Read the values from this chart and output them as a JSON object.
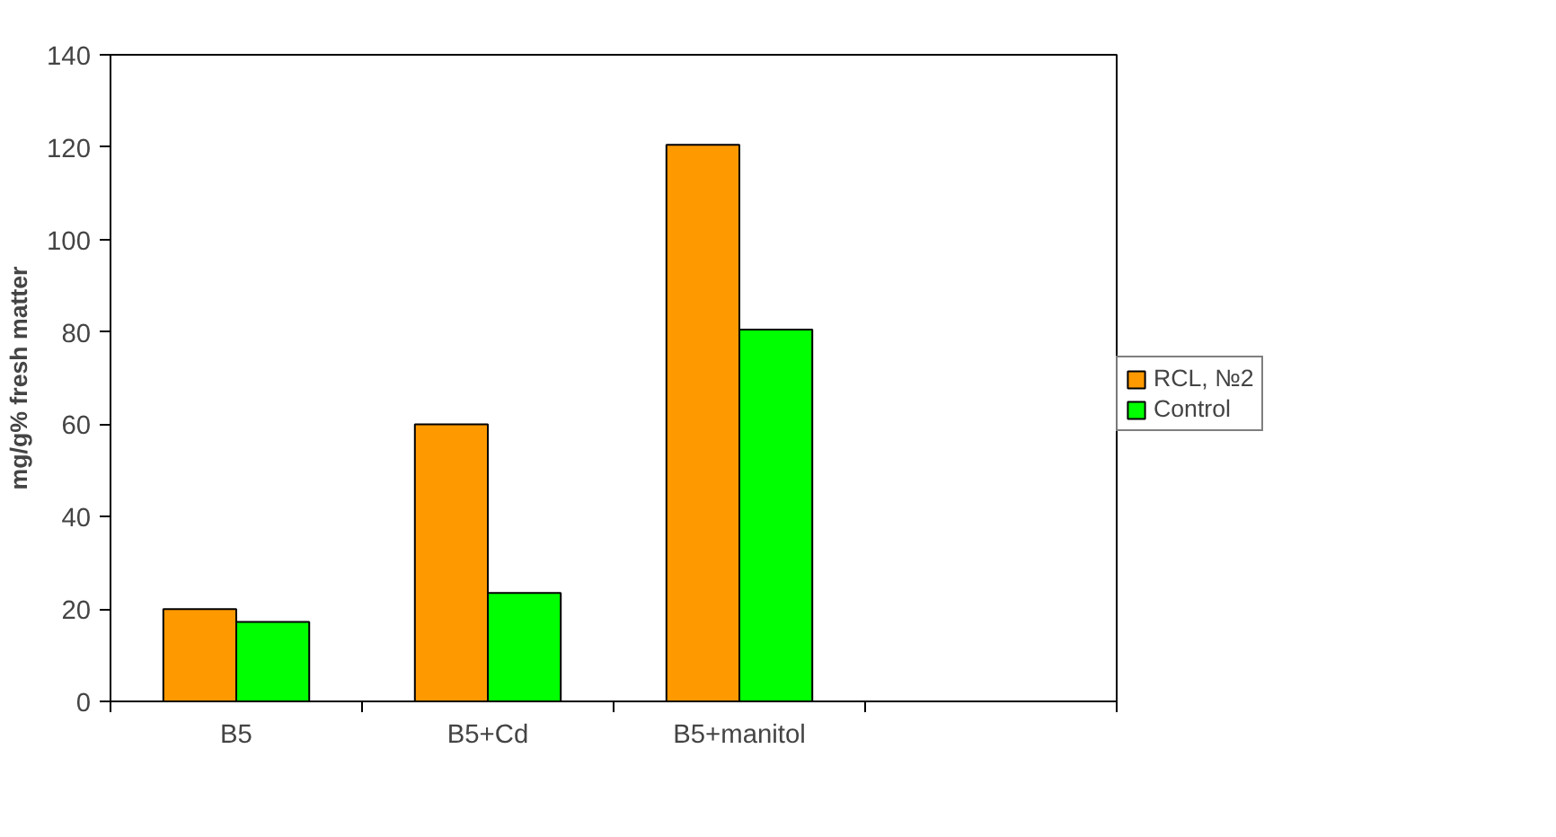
{
  "chart_data": {
    "type": "bar",
    "ylabel": "mg/g% fresh matter",
    "categories": [
      "B5",
      "B5+Cd",
      "B5+manitol",
      null
    ],
    "series": [
      {
        "name": "RCL, №2",
        "color": "#ff9900",
        "values": [
          20,
          60,
          120.5,
          null
        ]
      },
      {
        "name": "Control",
        "color": "#00ff00",
        "values": [
          17.2,
          23.5,
          80.5,
          null
        ]
      }
    ],
    "ylim": [
      0,
      140
    ],
    "yticks": [
      0,
      20,
      40,
      60,
      80,
      100,
      120,
      140
    ],
    "grid": false,
    "legend": "right"
  }
}
